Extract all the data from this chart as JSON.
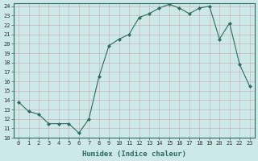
{
  "x": [
    0,
    1,
    2,
    3,
    4,
    5,
    6,
    7,
    8,
    9,
    10,
    11,
    12,
    13,
    14,
    15,
    16,
    17,
    18,
    19,
    20,
    21,
    22,
    23
  ],
  "y": [
    13.8,
    12.8,
    12.5,
    11.5,
    11.5,
    11.5,
    10.5,
    12.0,
    16.5,
    19.8,
    20.5,
    21.0,
    22.8,
    23.2,
    23.8,
    24.2,
    23.8,
    23.2,
    23.8,
    24.0,
    20.5,
    22.2,
    17.8,
    15.5
  ],
  "line_color": "#2e6b5e",
  "marker": "D",
  "marker_size": 2.0,
  "bg_color": "#cce8e8",
  "grid_color": "#b0d4d4",
  "xlabel": "Humidex (Indice chaleur)",
  "ylim": [
    10,
    24
  ],
  "xlim": [
    -0.5,
    23.5
  ],
  "yticks": [
    10,
    11,
    12,
    13,
    14,
    15,
    16,
    17,
    18,
    19,
    20,
    21,
    22,
    23,
    24
  ],
  "xticks": [
    0,
    1,
    2,
    3,
    4,
    5,
    6,
    7,
    8,
    9,
    10,
    11,
    12,
    13,
    14,
    15,
    16,
    17,
    18,
    19,
    20,
    21,
    22,
    23
  ],
  "xtick_labels": [
    "0",
    "1",
    "2",
    "3",
    "4",
    "5",
    "6",
    "7",
    "8",
    "9",
    "10",
    "11",
    "12",
    "13",
    "14",
    "15",
    "16",
    "17",
    "18",
    "19",
    "20",
    "21",
    "22",
    "23"
  ],
  "label_fontsize": 6.5,
  "tick_fontsize": 5.0
}
